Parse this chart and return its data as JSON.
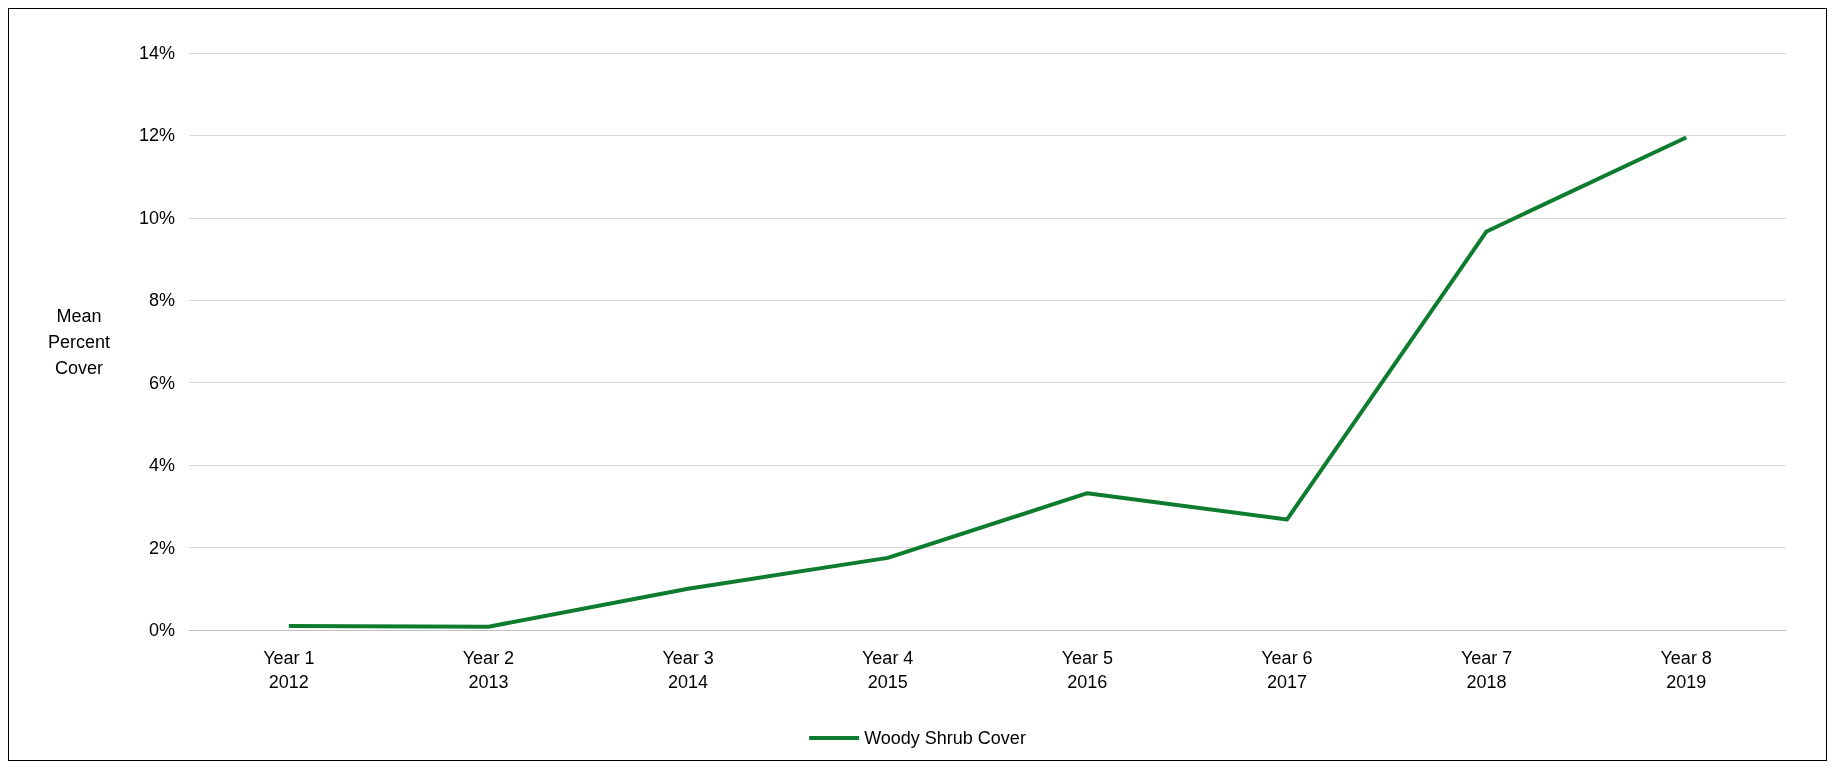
{
  "chart_data": {
    "type": "line",
    "ylabel": "Mean\nPercent\nCover",
    "categories": [
      "Year 1\n2012",
      "Year 2\n2013",
      "Year 3\n2014",
      "Year 4\n2015",
      "Year 5\n2016",
      "Year 6\n2017",
      "Year 7\n2018",
      "Year 8\n2019"
    ],
    "series": [
      {
        "name": "Woody Shrub Cover",
        "color": "#0e7c2f",
        "values": [
          0.1,
          0.08,
          1.0,
          1.75,
          3.32,
          2.68,
          9.67,
          11.95
        ]
      }
    ],
    "ylim": [
      0,
      14
    ],
    "yticks": [
      {
        "value": 0,
        "label": "0%"
      },
      {
        "value": 2,
        "label": "2%"
      },
      {
        "value": 4,
        "label": "4%"
      },
      {
        "value": 6,
        "label": "6%"
      },
      {
        "value": 8,
        "label": "8%"
      },
      {
        "value": 10,
        "label": "10%"
      },
      {
        "value": 12,
        "label": "12%"
      },
      {
        "value": 14,
        "label": "14%"
      }
    ],
    "grid": "y",
    "legend": "bottom",
    "marker": "none",
    "line_style": "solid"
  }
}
